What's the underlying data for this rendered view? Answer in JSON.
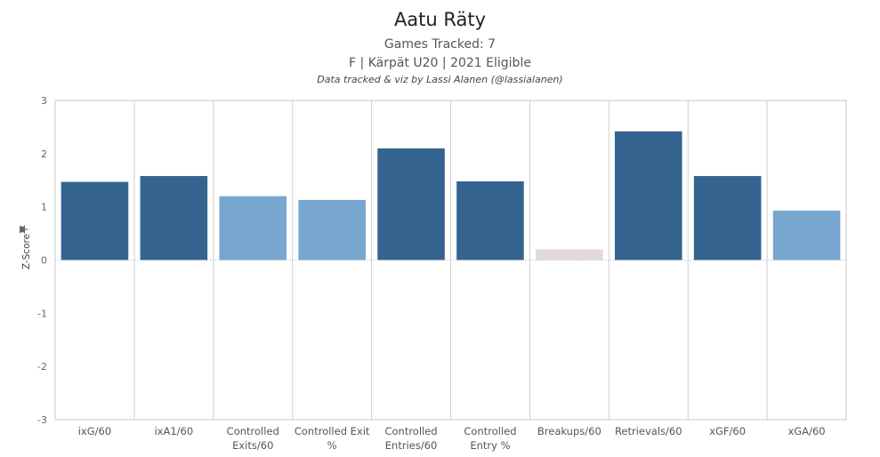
{
  "header": {
    "title": "Aatu Räty",
    "subtitle1": "Games Tracked: 7",
    "subtitle2": "F | Kärpät U20 | 2021 Eligible",
    "credit": "Data tracked & viz by Lassi Alanen (@lassialanen)"
  },
  "chart_data": {
    "type": "bar",
    "ylabel": "Z-Score",
    "ylabel_icon": "pin-icon",
    "ylim": [
      -3,
      3
    ],
    "yticks": [
      -3,
      -2,
      -1,
      0,
      1,
      2,
      3
    ],
    "grid": true,
    "categories": [
      [
        "ixG/60"
      ],
      [
        "ixA1/60"
      ],
      [
        "Controlled",
        "Exits/60"
      ],
      [
        "Controlled Exit",
        "%"
      ],
      [
        "Controlled",
        "Entries/60"
      ],
      [
        "Controlled",
        "Entry %"
      ],
      [
        "Breakups/60"
      ],
      [
        "Retrievals/60"
      ],
      [
        "xGF/60"
      ],
      [
        "xGA/60"
      ]
    ],
    "values": [
      1.47,
      1.58,
      1.2,
      1.13,
      2.1,
      1.48,
      0.2,
      2.42,
      1.58,
      0.93
    ],
    "colors": [
      "#34648f",
      "#34648f",
      "#77a6ce",
      "#77a6ce",
      "#34648f",
      "#34648f",
      "#e2d9d7",
      "#34648f",
      "#34648f",
      "#77a6ce"
    ]
  }
}
